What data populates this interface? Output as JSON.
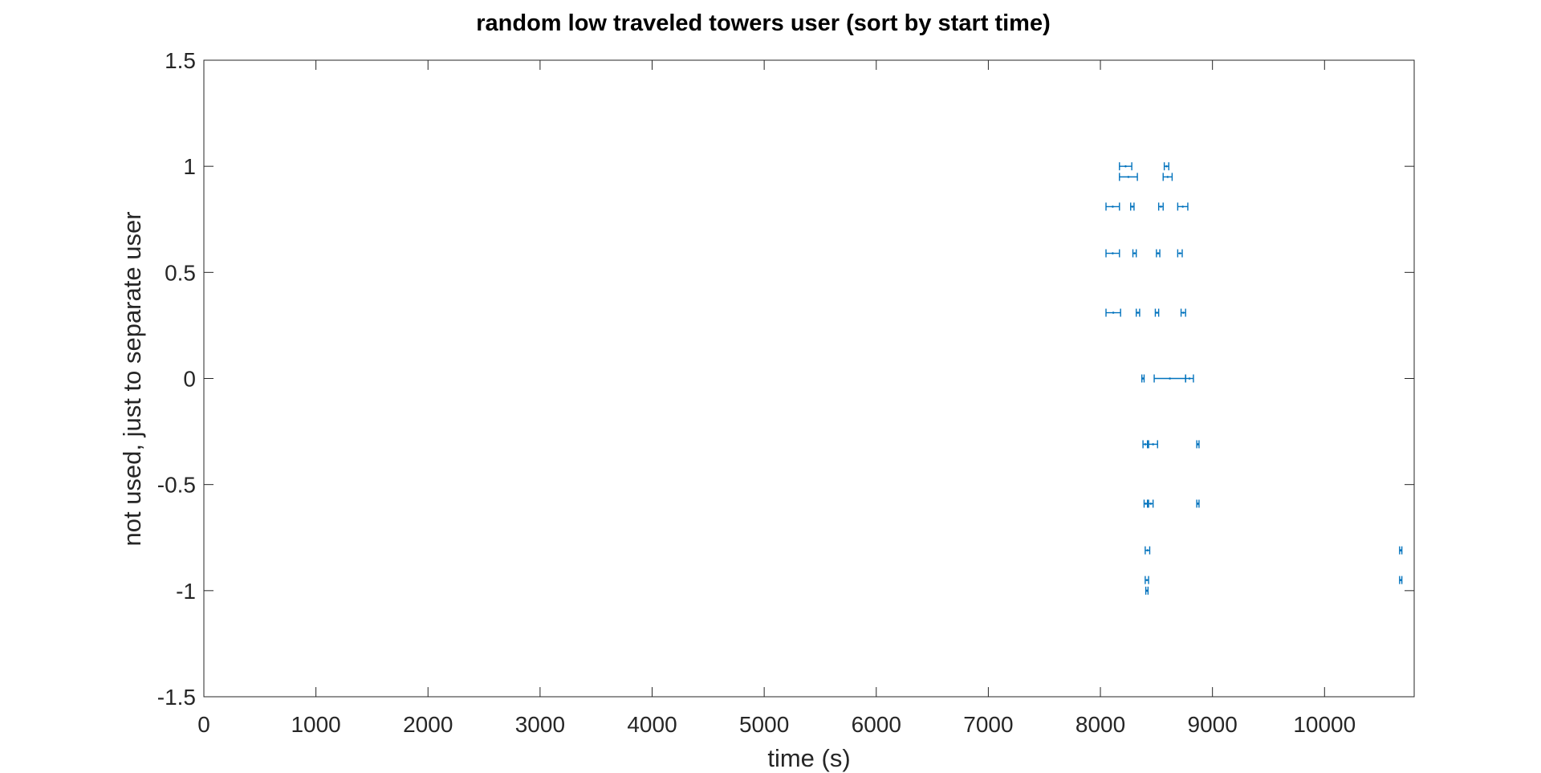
{
  "chart_data": {
    "type": "error-bar",
    "title": "random low traveled towers user (sort by start time)",
    "xlabel": "time (s)",
    "ylabel": "not used, just to separate user",
    "xlim": [
      0,
      10800
    ],
    "ylim": [
      -1.5,
      1.5
    ],
    "xticks": [
      0,
      1000,
      2000,
      3000,
      4000,
      5000,
      6000,
      7000,
      8000,
      9000,
      10000
    ],
    "yticks": [
      -1.5,
      -1,
      -0.5,
      0,
      0.5,
      1,
      1.5
    ],
    "xtick_labels": [
      "0",
      "1000",
      "2000",
      "3000",
      "4000",
      "5000",
      "6000",
      "7000",
      "8000",
      "9000",
      "10000"
    ],
    "ytick_labels": [
      "-1.5",
      "-1",
      "-0.5",
      "0",
      "0.5",
      "1",
      "1.5"
    ],
    "grid": false,
    "color": "#0072BD",
    "intervals": [
      {
        "y": 1.0,
        "start": 8170,
        "end": 8280
      },
      {
        "y": 1.0,
        "start": 8570,
        "end": 8610
      },
      {
        "y": 0.95,
        "start": 8170,
        "end": 8330
      },
      {
        "y": 0.95,
        "start": 8560,
        "end": 8640
      },
      {
        "y": 0.81,
        "start": 8050,
        "end": 8170
      },
      {
        "y": 0.81,
        "start": 8270,
        "end": 8300
      },
      {
        "y": 0.81,
        "start": 8520,
        "end": 8560
      },
      {
        "y": 0.81,
        "start": 8690,
        "end": 8780
      },
      {
        "y": 0.59,
        "start": 8050,
        "end": 8170
      },
      {
        "y": 0.59,
        "start": 8290,
        "end": 8320
      },
      {
        "y": 0.59,
        "start": 8500,
        "end": 8530
      },
      {
        "y": 0.59,
        "start": 8690,
        "end": 8730
      },
      {
        "y": 0.31,
        "start": 8050,
        "end": 8180
      },
      {
        "y": 0.31,
        "start": 8320,
        "end": 8350
      },
      {
        "y": 0.31,
        "start": 8490,
        "end": 8520
      },
      {
        "y": 0.31,
        "start": 8720,
        "end": 8760
      },
      {
        "y": 0.0,
        "start": 8370,
        "end": 8390
      },
      {
        "y": 0.0,
        "start": 8480,
        "end": 8760
      },
      {
        "y": 0.0,
        "start": 8760,
        "end": 8830
      },
      {
        "y": -0.31,
        "start": 8380,
        "end": 8420
      },
      {
        "y": -0.31,
        "start": 8430,
        "end": 8510
      },
      {
        "y": -0.31,
        "start": 8860,
        "end": 8880
      },
      {
        "y": -0.59,
        "start": 8390,
        "end": 8420
      },
      {
        "y": -0.59,
        "start": 8430,
        "end": 8470
      },
      {
        "y": -0.59,
        "start": 8860,
        "end": 8880
      },
      {
        "y": -0.81,
        "start": 8400,
        "end": 8440
      },
      {
        "y": -0.81,
        "start": 10670,
        "end": 10690
      },
      {
        "y": -0.95,
        "start": 8400,
        "end": 8430
      },
      {
        "y": -0.95,
        "start": 10670,
        "end": 10690
      },
      {
        "y": -1.0,
        "start": 8405,
        "end": 8425
      }
    ]
  }
}
